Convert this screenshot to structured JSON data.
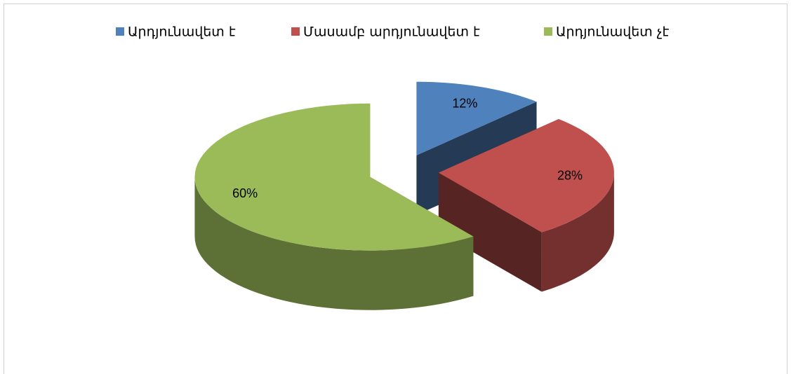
{
  "chart_data": {
    "type": "pie",
    "categories": [
      "Արդյունավետ է",
      "Մասամբ արդյունավետ է",
      "Արդյունավետ չէ"
    ],
    "values": [
      12,
      28,
      60
    ],
    "value_labels": [
      "12%",
      "28%",
      "60%"
    ],
    "colors": [
      "#4f81bd",
      "#c0504d",
      "#9bbb59"
    ],
    "legend": "top"
  }
}
